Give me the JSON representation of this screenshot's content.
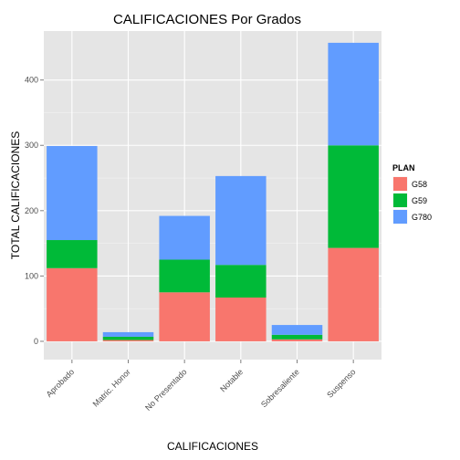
{
  "chart_data": {
    "type": "bar",
    "stacked": true,
    "title": "CALIFICACIONES Por Grados",
    "xlabel": "CALIFICACIONES",
    "ylabel": "TOTAL CALIFICACIONES",
    "categories": [
      "Aprobado",
      "Matric. Honor",
      "No Presentado",
      "Notable",
      "Sobresaliente",
      "Suspenso"
    ],
    "series": [
      {
        "name": "G58",
        "color": "#F8766D",
        "values": [
          112,
          2,
          75,
          67,
          3,
          143
        ]
      },
      {
        "name": "G59",
        "color": "#00BA38",
        "values": [
          43,
          5,
          50,
          50,
          7,
          157
        ]
      },
      {
        "name": "G780",
        "color": "#619CFF",
        "values": [
          144,
          7,
          67,
          136,
          15,
          157
        ]
      }
    ],
    "ylim": [
      -28,
      475
    ],
    "yticks": [
      0,
      100,
      200,
      300,
      400
    ],
    "grid": true,
    "legend": {
      "title": "PLAN",
      "position": "right"
    }
  }
}
